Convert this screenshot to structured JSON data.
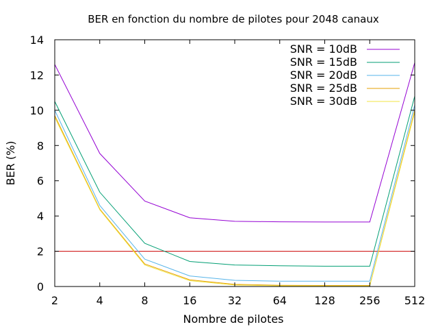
{
  "chart_data": {
    "type": "line",
    "title": "BER en fonction du nombre de pilotes pour 2048 canaux",
    "xlabel": "Nombre de pilotes",
    "ylabel": "BER (%)",
    "x_scale": "log2",
    "categories": [
      "2",
      "4",
      "8",
      "16",
      "32",
      "64",
      "128",
      "256",
      "512"
    ],
    "x": [
      2,
      4,
      8,
      16,
      32,
      64,
      128,
      256,
      512
    ],
    "ylim": [
      0,
      14
    ],
    "yticks": [
      0,
      2,
      4,
      6,
      8,
      10,
      12,
      14
    ],
    "grid": false,
    "legend_position": "top-right",
    "series": [
      {
        "name": "SNR = 10dB",
        "color": "#9400d3",
        "values": [
          12.6,
          7.55,
          4.85,
          3.9,
          3.7,
          3.67,
          3.66,
          3.66,
          12.7
        ]
      },
      {
        "name": "SNR = 15dB",
        "color": "#009e73",
        "values": [
          10.5,
          5.35,
          2.45,
          1.42,
          1.22,
          1.18,
          1.15,
          1.15,
          10.8
        ]
      },
      {
        "name": "SNR = 20dB",
        "color": "#56b4e9",
        "values": [
          10.0,
          4.6,
          1.55,
          0.6,
          0.35,
          0.3,
          0.3,
          0.3,
          10.3
        ]
      },
      {
        "name": "SNR = 25dB",
        "color": "#e69f00",
        "values": [
          9.7,
          4.4,
          1.28,
          0.38,
          0.12,
          0.07,
          0.06,
          0.06,
          10.0
        ]
      },
      {
        "name": "SNR = 30dB",
        "color": "#f0e442",
        "values": [
          9.6,
          4.35,
          1.22,
          0.33,
          0.08,
          0.04,
          0.03,
          0.03,
          9.9
        ]
      }
    ],
    "reference_line": {
      "y": 2,
      "color": "#cc0000"
    }
  }
}
